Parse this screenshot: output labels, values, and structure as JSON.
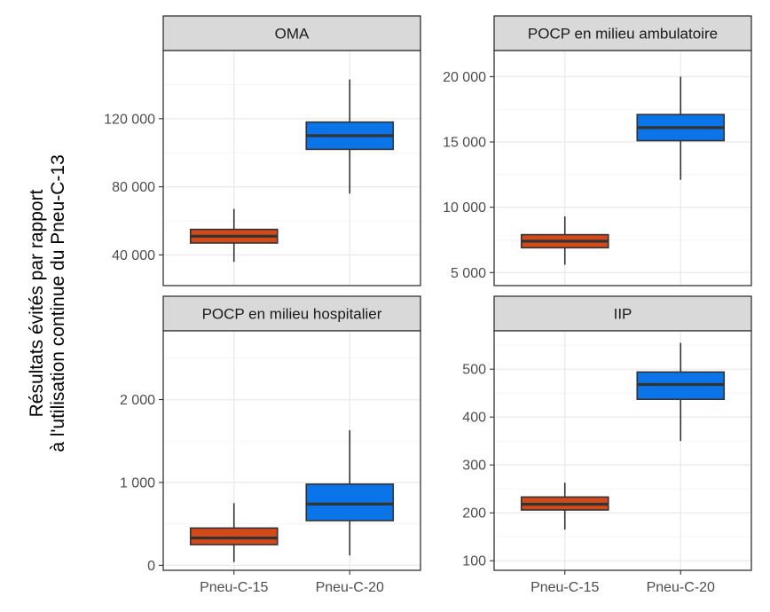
{
  "chart_data": {
    "type": "box",
    "ylabel": [
      "Résultats évités par rapport",
      "à l'utilisation continue du Pneu-C-13"
    ],
    "categories": [
      "Pneu-C-15",
      "Pneu-C-20"
    ],
    "colors": {
      "Pneu-C-15": "#d2491a",
      "Pneu-C-20": "#0a74e8"
    },
    "grid": true,
    "facets": [
      {
        "title": "OMA",
        "ylim": [
          22000,
          160000
        ],
        "ticks": [
          40000,
          80000,
          120000
        ],
        "tick_labels": [
          "40 000",
          "80 000",
          "120 000"
        ],
        "boxes": [
          {
            "category": "Pneu-C-15",
            "min": 36000,
            "q1": 47000,
            "median": 51000,
            "q3": 55000,
            "max": 67000
          },
          {
            "category": "Pneu-C-20",
            "min": 76000,
            "q1": 102000,
            "median": 110000,
            "q3": 118000,
            "max": 143000
          }
        ]
      },
      {
        "title": "POCP en milieu ambulatoire",
        "ylim": [
          4000,
          22000
        ],
        "ticks": [
          5000,
          10000,
          15000,
          20000
        ],
        "tick_labels": [
          "5 000",
          "10 000",
          "15 000",
          "20 000"
        ],
        "boxes": [
          {
            "category": "Pneu-C-15",
            "min": 5600,
            "q1": 6900,
            "median": 7400,
            "q3": 7900,
            "max": 9300
          },
          {
            "category": "Pneu-C-20",
            "min": 12100,
            "q1": 15100,
            "median": 16100,
            "q3": 17100,
            "max": 20000
          }
        ]
      },
      {
        "title": "POCP en milieu hospitalier",
        "ylim": [
          -60,
          2830
        ],
        "ticks": [
          0,
          1000,
          2000
        ],
        "tick_labels": [
          "0",
          "1 000",
          "2 000"
        ],
        "boxes": [
          {
            "category": "Pneu-C-15",
            "min": 40,
            "q1": 250,
            "median": 330,
            "q3": 450,
            "max": 750
          },
          {
            "category": "Pneu-C-20",
            "min": 120,
            "q1": 540,
            "median": 740,
            "q3": 980,
            "max": 1630
          }
        ]
      },
      {
        "title": "IIP",
        "ylim": [
          80,
          580
        ],
        "ticks": [
          100,
          200,
          300,
          400,
          500
        ],
        "tick_labels": [
          "100",
          "200",
          "300",
          "400",
          "500"
        ],
        "boxes": [
          {
            "category": "Pneu-C-15",
            "min": 165,
            "q1": 206,
            "median": 218,
            "q3": 233,
            "max": 263
          },
          {
            "category": "Pneu-C-20",
            "min": 350,
            "q1": 437,
            "median": 468,
            "q3": 494,
            "max": 555
          }
        ]
      }
    ]
  }
}
